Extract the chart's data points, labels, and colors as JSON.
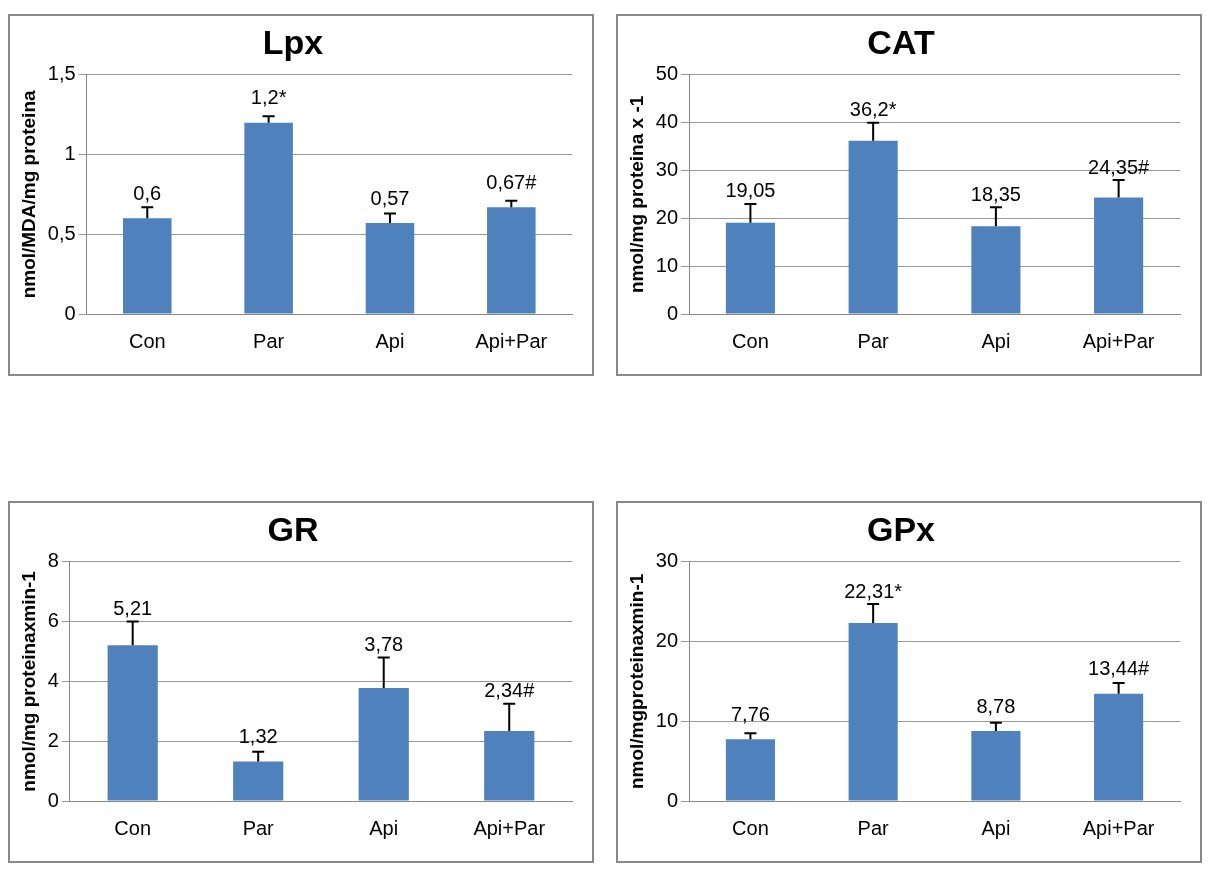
{
  "chart_data": [
    {
      "type": "bar",
      "title": "Lpx",
      "ylabel": "nmol/MDA/mg proteina",
      "categories": [
        "Con",
        "Par",
        "Api",
        "Api+Par"
      ],
      "color": "#4f81bd",
      "values": [
        0.6,
        1.2,
        0.57,
        0.67
      ],
      "errors": [
        [
          0.6,
          0.67
        ],
        [
          1.2,
          1.24
        ],
        [
          0.57,
          0.63
        ],
        [
          0.67,
          0.71
        ]
      ],
      "value_labels": [
        "0,6",
        "1,2*",
        "0,57",
        "0,67#"
      ],
      "ylim": [
        0,
        1.5
      ],
      "yticks": [
        0,
        {
          "value": 0.5,
          "label": "0,5"
        },
        1,
        {
          "value": 1.5,
          "label": "1,5"
        }
      ],
      "grid": "y",
      "legend": false
    },
    {
      "type": "bar",
      "title": "CAT",
      "ylabel": "nmol/mg proteina x -1",
      "categories": [
        "Con",
        "Par",
        "Api",
        "Api+Par"
      ],
      "color": "#4f81bd",
      "values": [
        19.05,
        36.2,
        18.35,
        24.35
      ],
      "errors": [
        [
          19.05,
          23
        ],
        [
          36.2,
          40
        ],
        [
          18.35,
          22.3
        ],
        [
          24.35,
          28
        ]
      ],
      "value_labels": [
        "19,05",
        "36,2*",
        "18,35",
        "24,35#"
      ],
      "ylim": [
        0,
        50
      ],
      "yticks": [
        0,
        10,
        20,
        30,
        40,
        50
      ],
      "grid": "y",
      "legend": false
    },
    {
      "type": "bar",
      "title": "GR",
      "ylabel": "nmol/mg proteinaxmin-1",
      "categories": [
        "Con",
        "Par",
        "Api",
        "Api+Par"
      ],
      "color": "#4f81bd",
      "values": [
        5.21,
        1.32,
        3.78,
        2.34
      ],
      "errors": [
        [
          5.21,
          6
        ],
        [
          1.32,
          1.65
        ],
        [
          3.78,
          4.8
        ],
        [
          2.34,
          3.25
        ]
      ],
      "value_labels": [
        "5,21",
        "1,32",
        "3,78",
        "2,34#"
      ],
      "ylim": [
        0,
        8
      ],
      "yticks": [
        0,
        2,
        4,
        6,
        8
      ],
      "grid": "y",
      "legend": false
    },
    {
      "type": "bar",
      "title": "GPx",
      "ylabel": "nmol/mgproteinaxmin-1",
      "categories": [
        "Con",
        "Par",
        "Api",
        "Api+Par"
      ],
      "color": "#4f81bd",
      "values": [
        7.76,
        22.31,
        8.78,
        13.44
      ],
      "errors": [
        [
          7.76,
          8.5
        ],
        [
          22.31,
          24.7
        ],
        [
          8.78,
          9.8
        ],
        [
          13.44,
          14.8
        ]
      ],
      "value_labels": [
        "7,76",
        "22,31*",
        "8,78",
        "13,44#"
      ],
      "ylim": [
        0,
        30
      ],
      "yticks": [
        0,
        10,
        20,
        30
      ],
      "grid": "y",
      "legend": false
    }
  ]
}
